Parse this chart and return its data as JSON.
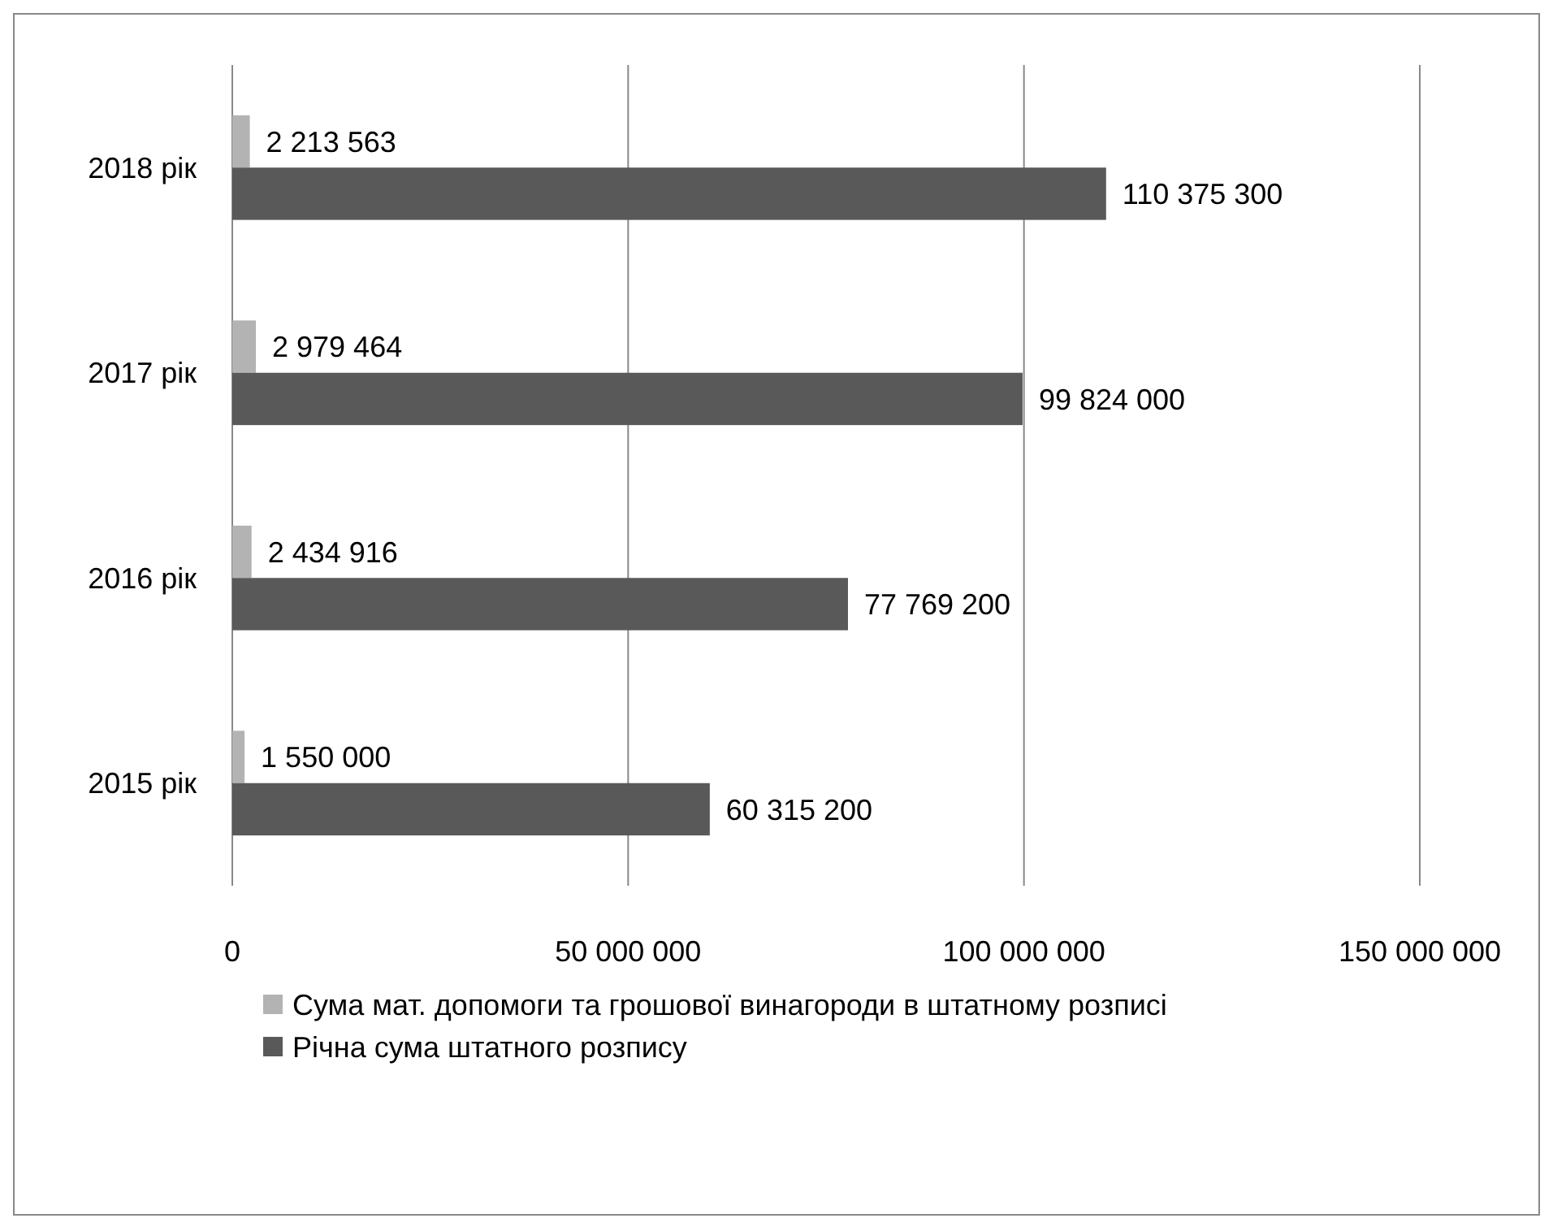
{
  "chart_data": {
    "type": "bar",
    "orientation": "horizontal",
    "categories": [
      "2018 рік",
      "2017 рік",
      "2016 рік",
      "2015 рік"
    ],
    "series": [
      {
        "name": "Сума мат. допомоги та грошової винагороди в штатному розписі",
        "color": "#b3b3b3",
        "values": [
          2213563,
          2979464,
          2434916,
          1550000
        ],
        "value_labels": [
          "2 213 563",
          "2 979 464",
          "2 434 916",
          "1 550 000"
        ]
      },
      {
        "name": "Річна сума штатного розпису",
        "color": "#595959",
        "values": [
          110375300,
          99824000,
          77769200,
          60315200
        ],
        "value_labels": [
          "110 375 300",
          "99 824 000",
          "77 769 200",
          "60 315 200"
        ]
      }
    ],
    "xlim": [
      0,
      150000000
    ],
    "xticks": [
      0,
      {
        "value": 50000000,
        "label": "50 000 000"
      },
      {
        "value": 100000000,
        "label": "100 000 000"
      },
      {
        "value": 150000000,
        "label": "150 000 000"
      }
    ],
    "grid": "x",
    "legend": "bottom"
  }
}
